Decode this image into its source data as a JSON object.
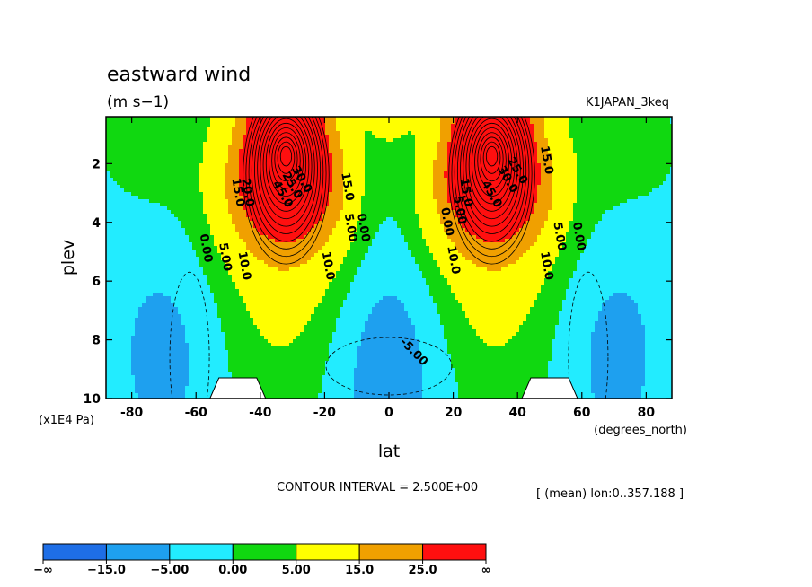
{
  "chart_data": {
    "type": "heatmap",
    "title": "eastward wind",
    "units": "(m s−1)",
    "dataset": "K1JAPAN_3keq",
    "xlabel": "lat",
    "x_units": "(degrees_north)",
    "ylabel": "plev",
    "y_units": "(x1E4 Pa)",
    "xlim": [
      -88,
      88
    ],
    "ylim": [
      10,
      0.4
    ],
    "x_ticks": [
      -80,
      -60,
      -40,
      -20,
      0,
      20,
      40,
      60,
      80
    ],
    "y_ticks": [
      2,
      4,
      6,
      8,
      10
    ],
    "contour_interval_text": "CONTOUR INTERVAL = 2.500E+00",
    "mean_note": "[ (mean) lon:0..357.188 ]",
    "contour_labels": [
      "0.00",
      "5.00",
      "10.0",
      "15.0",
      "20.0",
      "25.0",
      "30.0",
      "45.0",
      "50.0",
      "-5.00"
    ],
    "jets": [
      {
        "lat": -32,
        "plev": 1.7,
        "max": 50
      },
      {
        "lat": 32,
        "plev": 1.7,
        "max": 50
      }
    ],
    "colorbar": {
      "labels": [
        "−∞",
        "−15.0",
        "−5.00",
        "0.00",
        "5.00",
        "15.0",
        "25.0",
        "∞"
      ],
      "colors": [
        "#1e6ee6",
        "#1ea0ef",
        "#22ecff",
        "#10d810",
        "#ffff00",
        "#f0a000",
        "#ff0f0f"
      ]
    },
    "grid": false
  }
}
